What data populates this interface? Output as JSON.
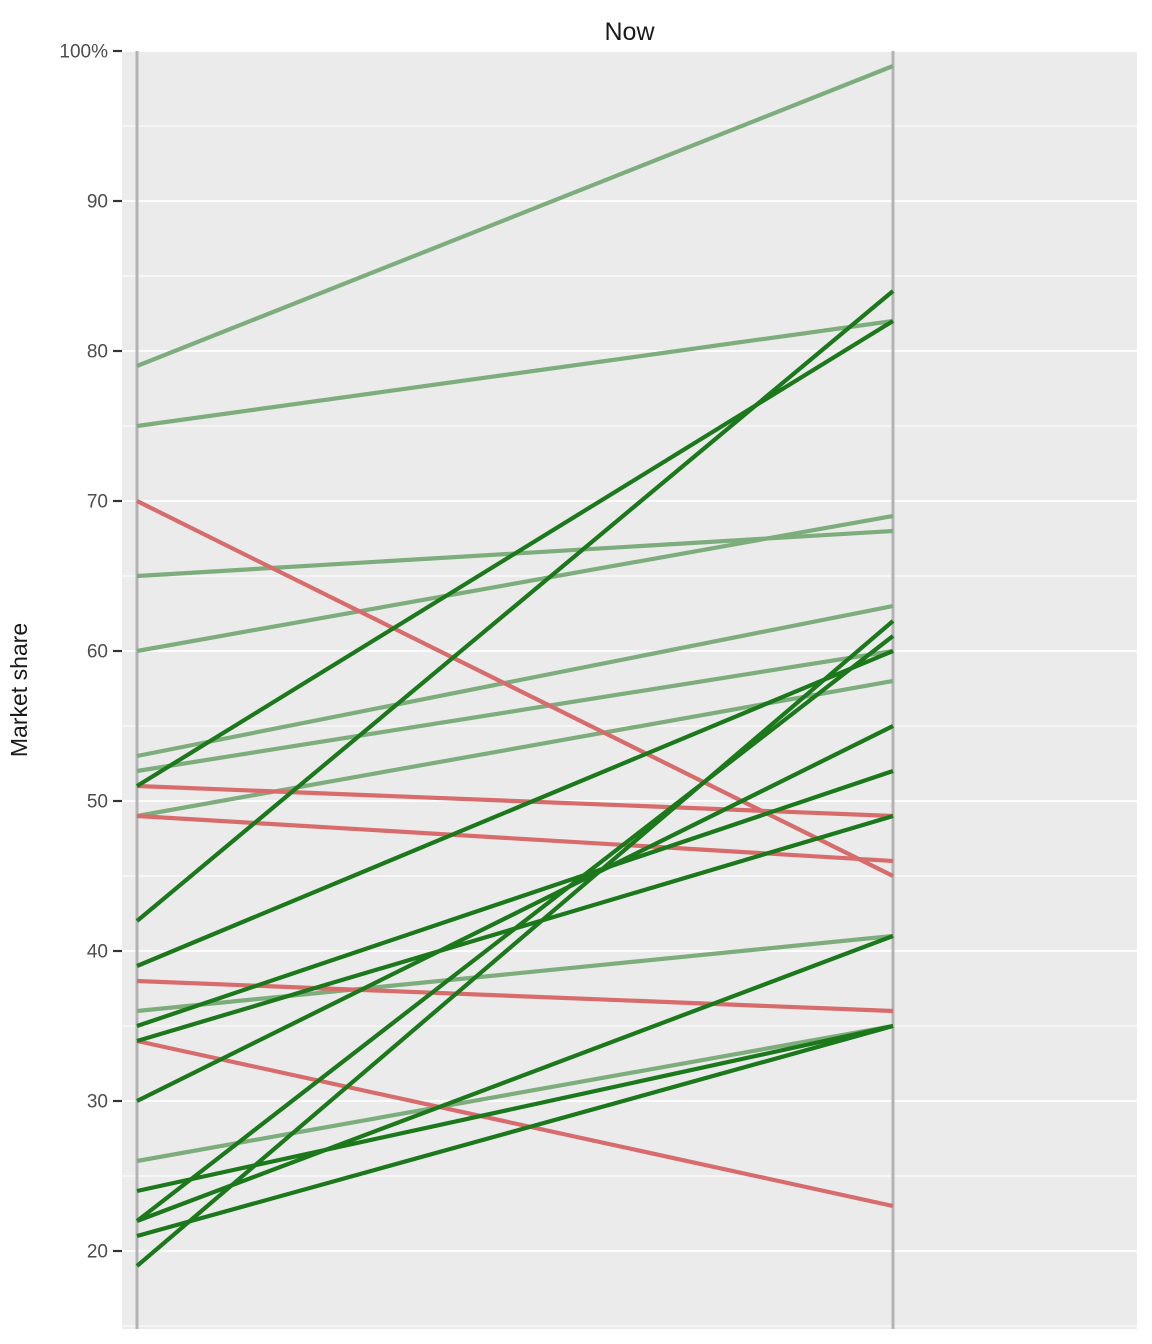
{
  "title": "Now",
  "ylabel": "Market share",
  "colors": {
    "panel_bg": "#ebebeb",
    "grid_major": "#ffffff",
    "grid_minor": "#ffffff",
    "axis_line": "#b3b3b3",
    "tick_mark": "#333333",
    "tick_label": "#4d4d4d",
    "title_color": "#1a1a1a",
    "ylabel_color": "#1a1a1a",
    "gain_dark": "#1b781b",
    "gain_light": "#7dad7d",
    "loss": "#d86c6c"
  },
  "y_axis": {
    "ticks": [
      {
        "value": 100,
        "label": "100%"
      },
      {
        "value": 90,
        "label": "90"
      },
      {
        "value": 80,
        "label": "80"
      },
      {
        "value": 70,
        "label": "70"
      },
      {
        "value": 60,
        "label": "60"
      },
      {
        "value": 50,
        "label": "50"
      },
      {
        "value": 40,
        "label": "40"
      },
      {
        "value": 30,
        "label": "30"
      },
      {
        "value": 20,
        "label": "20"
      }
    ],
    "minor_ticks": [
      95,
      85,
      75,
      65,
      55,
      45,
      35,
      25,
      15
    ]
  },
  "chart_data": {
    "type": "slopegraph",
    "title": "Now",
    "ylabel": "Market share",
    "ylim": [
      14.5,
      100
    ],
    "grid": true,
    "columns": 2,
    "series": [
      {
        "start": 79,
        "end": 99,
        "trend": "gain_light"
      },
      {
        "start": 75,
        "end": 82,
        "trend": "gain_light"
      },
      {
        "start": 65,
        "end": 68,
        "trend": "gain_light"
      },
      {
        "start": 60,
        "end": 69,
        "trend": "gain_light"
      },
      {
        "start": 53,
        "end": 63,
        "trend": "gain_light"
      },
      {
        "start": 52,
        "end": 60,
        "trend": "gain_light"
      },
      {
        "start": 49,
        "end": 58,
        "trend": "gain_light"
      },
      {
        "start": 36,
        "end": 41,
        "trend": "gain_light"
      },
      {
        "start": 26,
        "end": 35,
        "trend": "gain_light"
      },
      {
        "start": 70,
        "end": 45,
        "trend": "loss"
      },
      {
        "start": 51,
        "end": 49,
        "trend": "loss"
      },
      {
        "start": 49,
        "end": 46,
        "trend": "loss"
      },
      {
        "start": 38,
        "end": 36,
        "trend": "loss"
      },
      {
        "start": 34,
        "end": 23,
        "trend": "loss"
      },
      {
        "start": 51,
        "end": 82,
        "trend": "gain_dark"
      },
      {
        "start": 42,
        "end": 84,
        "trend": "gain_dark"
      },
      {
        "start": 39,
        "end": 60,
        "trend": "gain_dark"
      },
      {
        "start": 35,
        "end": 52,
        "trend": "gain_dark"
      },
      {
        "start": 34,
        "end": 49,
        "trend": "gain_dark"
      },
      {
        "start": 30,
        "end": 55,
        "trend": "gain_dark"
      },
      {
        "start": 24,
        "end": 35,
        "trend": "gain_dark"
      },
      {
        "start": 22,
        "end": 61,
        "trend": "gain_dark"
      },
      {
        "start": 22,
        "end": 41,
        "trend": "gain_dark"
      },
      {
        "start": 21,
        "end": 35,
        "trend": "gain_dark"
      },
      {
        "start": 19,
        "end": 62,
        "trend": "gain_dark"
      }
    ]
  }
}
